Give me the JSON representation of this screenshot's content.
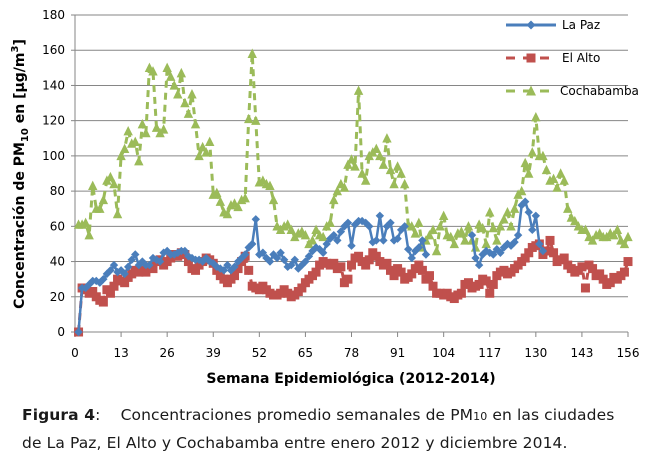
{
  "chart_data": {
    "type": "line",
    "title": "",
    "xlabel": "Semana Epidemiológica (2012-2014)",
    "ylabel_parts": [
      "Concentración de PM",
      "10",
      " en [µg/m",
      "3",
      "]"
    ],
    "ylabel": "Concentración de PM10 en [µg/m3]",
    "xlim": [
      0,
      156
    ],
    "ylim": [
      0,
      180
    ],
    "xticks": [
      0,
      13,
      26,
      39,
      52,
      65,
      78,
      91,
      104,
      117,
      130,
      143,
      156
    ],
    "yticks": [
      0,
      20,
      40,
      60,
      80,
      100,
      120,
      140,
      160,
      180
    ],
    "grid": "horizontal",
    "legend_position": "top-right",
    "series": [
      {
        "name": "La Paz",
        "color": "#4A7EBB",
        "marker": "diamond",
        "line": "solid",
        "x_start": 1,
        "values": [
          0,
          25,
          25,
          27,
          29,
          29,
          28,
          30,
          33,
          35,
          38,
          34,
          35,
          33,
          37,
          41,
          44,
          38,
          40,
          38,
          38,
          42,
          41,
          40,
          45,
          46,
          44,
          44,
          45,
          46,
          46,
          43,
          42,
          41,
          41,
          40,
          42,
          40,
          39,
          37,
          36,
          35,
          38,
          35,
          37,
          40,
          42,
          44,
          48,
          50,
          64,
          44,
          45,
          42,
          40,
          44,
          42,
          45,
          41,
          37,
          38,
          41,
          36,
          38,
          40,
          43,
          46,
          48,
          47,
          45,
          50,
          53,
          55,
          52,
          57,
          60,
          62,
          49,
          61,
          63,
          63,
          62,
          60,
          51,
          52,
          66,
          52,
          60,
          62,
          52,
          53,
          58,
          60,
          47,
          42,
          46,
          48,
          52,
          44,
          null,
          null,
          null,
          null,
          null,
          null,
          null,
          null,
          null,
          null,
          null,
          null,
          55,
          42,
          38,
          44,
          46,
          45,
          44,
          47,
          45,
          48,
          50,
          49,
          51,
          55,
          72,
          74,
          68,
          58,
          66,
          50,
          46,
          null,
          null,
          null,
          null,
          null,
          null,
          null,
          null,
          null,
          null,
          null,
          null,
          null,
          null,
          null,
          null,
          null,
          null,
          null,
          null,
          null
        ]
      },
      {
        "name": "El Alto",
        "color": "#C0504D",
        "marker": "square",
        "line": "dashed",
        "x_start": 1,
        "values": [
          0,
          25,
          24,
          22,
          23,
          20,
          18,
          17,
          24,
          22,
          26,
          30,
          29,
          28,
          31,
          33,
          35,
          34,
          35,
          34,
          37,
          36,
          40,
          41,
          38,
          40,
          42,
          44,
          43,
          45,
          44,
          40,
          36,
          35,
          38,
          40,
          42,
          41,
          39,
          35,
          32,
          30,
          28,
          30,
          32,
          36,
          40,
          43,
          35,
          26,
          25,
          24,
          26,
          24,
          22,
          21,
          21,
          22,
          24,
          22,
          20,
          21,
          23,
          25,
          28,
          30,
          32,
          34,
          38,
          40,
          39,
          38,
          39,
          36,
          37,
          28,
          30,
          38,
          42,
          43,
          40,
          38,
          41,
          45,
          43,
          40,
          38,
          39,
          35,
          32,
          36,
          34,
          30,
          31,
          33,
          36,
          38,
          35,
          30,
          32,
          26,
          22,
          22,
          21,
          22,
          20,
          19,
          21,
          22,
          27,
          28,
          25,
          26,
          27,
          30,
          29,
          22,
          27,
          32,
          34,
          35,
          33,
          34,
          36,
          38,
          40,
          42,
          45,
          48,
          49,
          50,
          44,
          46,
          52,
          45,
          40,
          41,
          42,
          38,
          36,
          34,
          35,
          37,
          25,
          38,
          36,
          32,
          33,
          30,
          27,
          28,
          31,
          30,
          32,
          34,
          40
        ]
      },
      {
        "name": "Cochabamba",
        "color": "#9BBB59",
        "marker": "triangle",
        "line": "dashed",
        "x_start": 1,
        "values": [
          61,
          61,
          62,
          55,
          83,
          70,
          70,
          75,
          86,
          88,
          84,
          67,
          100,
          104,
          114,
          107,
          108,
          97,
          118,
          113,
          150,
          148,
          116,
          113,
          115,
          150,
          145,
          140,
          135,
          147,
          130,
          124,
          135,
          118,
          100,
          105,
          102,
          108,
          78,
          79,
          74,
          68,
          67,
          72,
          73,
          71,
          75,
          76,
          121,
          158,
          120,
          85,
          86,
          84,
          83,
          75,
          60,
          58,
          60,
          61,
          58,
          54,
          56,
          57,
          55,
          50,
          52,
          58,
          55,
          54,
          60,
          62,
          75,
          80,
          84,
          82,
          95,
          98,
          94,
          137,
          90,
          86,
          100,
          102,
          104,
          100,
          95,
          110,
          92,
          84,
          94,
          90,
          84,
          61,
          60,
          56,
          62,
          48,
          52,
          55,
          58,
          46,
          60,
          66,
          55,
          54,
          50,
          56,
          57,
          52,
          60,
          52,
          48,
          61,
          59,
          50,
          68,
          59,
          52,
          60,
          64,
          68,
          60,
          70,
          78,
          80,
          96,
          90,
          102,
          122,
          100,
          100,
          92,
          86,
          87,
          82,
          90,
          86,
          70,
          65,
          63,
          60,
          58,
          58,
          54,
          52,
          55,
          56,
          54,
          54,
          56,
          55,
          58,
          52,
          50,
          54
        ]
      }
    ]
  },
  "caption": {
    "label": "Figura 4",
    "separator": ":",
    "text_before_sub": "Concentraciones promedio semanales de PM",
    "sub": "10",
    "text_after_sub": " en las ciudades",
    "line2": "de La Paz, El Alto y Cochabamba entre enero 2012 y diciembre 2014."
  }
}
